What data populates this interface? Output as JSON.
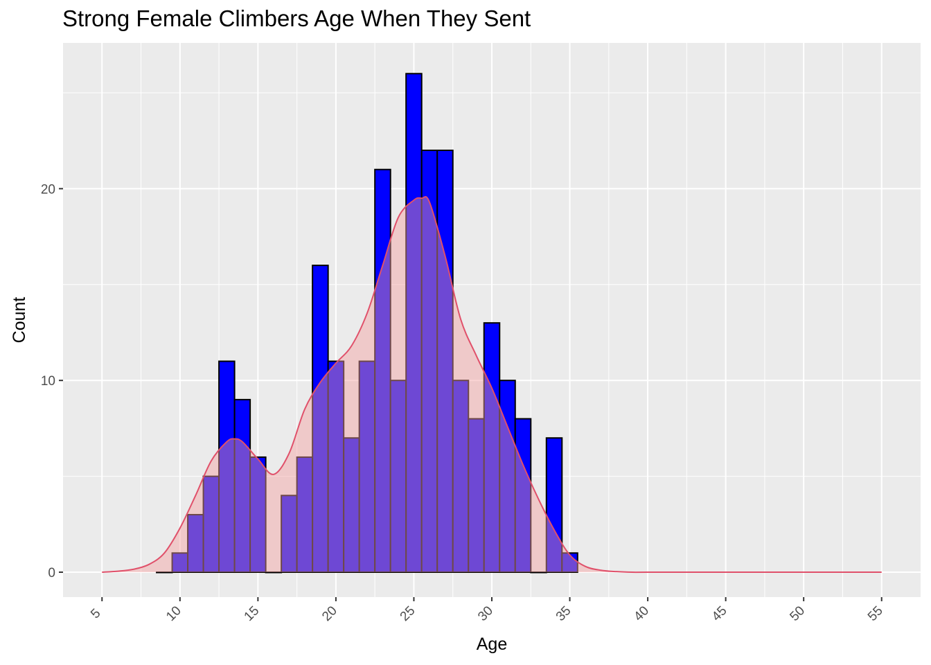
{
  "chart_data": {
    "type": "bar",
    "title": "Strong Female Climbers Age When They Sent",
    "xlabel": "Age",
    "ylabel": "Count",
    "xlim": [
      2.5,
      57.5
    ],
    "ylim": [
      -1.3,
      27.6
    ],
    "x_ticks": [
      5,
      10,
      15,
      20,
      25,
      30,
      35,
      40,
      45,
      50,
      55
    ],
    "y_ticks": [
      0,
      10,
      20
    ],
    "bin_width": 1,
    "bins": [
      {
        "age": 9,
        "count": 0
      },
      {
        "age": 10,
        "count": 1
      },
      {
        "age": 11,
        "count": 3
      },
      {
        "age": 12,
        "count": 5
      },
      {
        "age": 13,
        "count": 11
      },
      {
        "age": 14,
        "count": 9
      },
      {
        "age": 15,
        "count": 6
      },
      {
        "age": 16,
        "count": 0
      },
      {
        "age": 17,
        "count": 4
      },
      {
        "age": 18,
        "count": 6
      },
      {
        "age": 19,
        "count": 16
      },
      {
        "age": 20,
        "count": 11
      },
      {
        "age": 21,
        "count": 7
      },
      {
        "age": 22,
        "count": 11
      },
      {
        "age": 23,
        "count": 21
      },
      {
        "age": 24,
        "count": 10
      },
      {
        "age": 25,
        "count": 26
      },
      {
        "age": 26,
        "count": 22
      },
      {
        "age": 27,
        "count": 22
      },
      {
        "age": 28,
        "count": 10
      },
      {
        "age": 29,
        "count": 8
      },
      {
        "age": 30,
        "count": 13
      },
      {
        "age": 31,
        "count": 10
      },
      {
        "age": 32,
        "count": 8
      },
      {
        "age": 33,
        "count": 0
      },
      {
        "age": 34,
        "count": 7
      },
      {
        "age": 35,
        "count": 1
      }
    ],
    "density_curve": {
      "x": [
        5,
        6,
        7,
        8,
        9,
        10,
        11,
        12,
        13,
        13.5,
        14,
        15,
        16,
        17,
        18,
        19,
        20,
        21,
        22,
        23,
        24,
        25,
        25.5,
        26,
        27,
        28,
        29,
        30,
        31,
        32,
        33,
        34,
        35,
        36,
        37,
        38,
        39,
        40,
        45,
        50,
        55
      ],
      "y": [
        0,
        0.05,
        0.15,
        0.4,
        1.0,
        2.3,
        4.0,
        5.8,
        6.8,
        6.95,
        6.8,
        5.9,
        5.1,
        6.2,
        8.5,
        9.9,
        10.9,
        11.8,
        13.5,
        16.0,
        18.5,
        19.4,
        19.5,
        19.3,
        16.5,
        13.2,
        11.3,
        9.6,
        7.6,
        5.6,
        3.8,
        2.2,
        0.9,
        0.3,
        0.1,
        0.03,
        0,
        0,
        0,
        0,
        0
      ]
    },
    "colors": {
      "panel": "#ebebeb",
      "grid": "#ffffff",
      "bar_fill": "#0000ff",
      "bar_stroke": "#000000",
      "density_fill": "#f4a0a0",
      "density_line": "#e0506a"
    },
    "grid": true,
    "legend": "none"
  }
}
